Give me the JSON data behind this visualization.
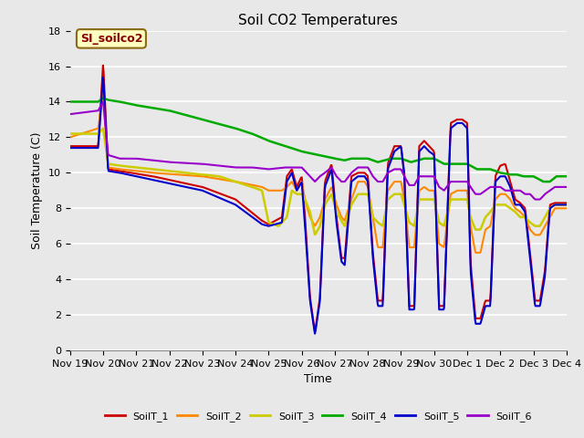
{
  "title": "Soil CO2 Temperatures",
  "xlabel": "Time",
  "ylabel": "Soil Temperature (C)",
  "ylim": [
    0,
    18
  ],
  "yticks": [
    0,
    2,
    4,
    6,
    8,
    10,
    12,
    14,
    16,
    18
  ],
  "background_color": "#e8e8e8",
  "plot_bg_color": "#e8e8e8",
  "grid_color": "#ffffff",
  "annotation_text": "SI_soilco2",
  "annotation_color": "#8b0000",
  "annotation_bg": "#ffffc0",
  "annotation_border": "#8b6914",
  "series": {
    "SoilT_1": {
      "color": "#cc0000",
      "lw": 1.5
    },
    "SoilT_2": {
      "color": "#ff8800",
      "lw": 1.5
    },
    "SoilT_3": {
      "color": "#cccc00",
      "lw": 1.8
    },
    "SoilT_4": {
      "color": "#00aa00",
      "lw": 1.8
    },
    "SoilT_5": {
      "color": "#0000cc",
      "lw": 1.5
    },
    "SoilT_6": {
      "color": "#9900cc",
      "lw": 1.5
    }
  },
  "x_tick_labels": [
    "Nov 19",
    "Nov 20",
    "Nov 21",
    "Nov 22",
    "Nov 23",
    "Nov 24",
    "Nov 25",
    "Nov 26",
    "Nov 27",
    "Nov 28",
    "Nov 29",
    "Nov 30",
    "Dec 1",
    "Dec 2",
    "Dec 3",
    "Dec 4"
  ],
  "x_tick_positions": [
    0,
    1,
    2,
    3,
    4,
    5,
    6,
    7,
    8,
    9,
    10,
    11,
    12,
    13,
    14,
    15
  ],
  "figsize": [
    6.4,
    4.8
  ],
  "dpi": 100
}
